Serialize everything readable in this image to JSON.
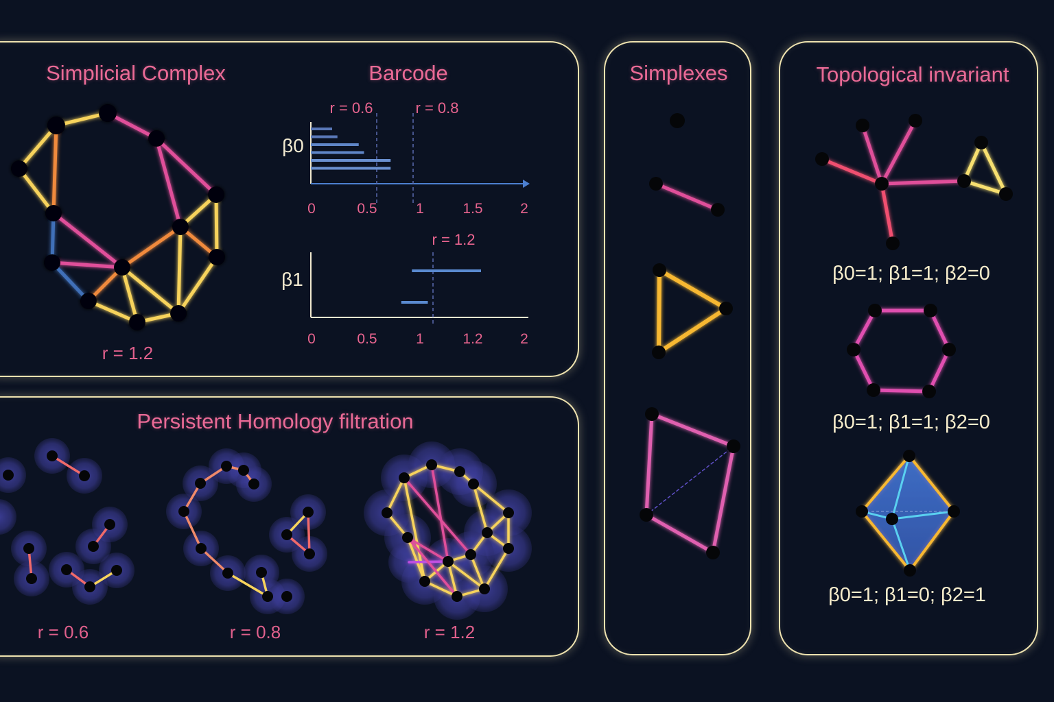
{
  "panels": {
    "complex": {
      "title": "Simplicial Complex",
      "radius_label": "r = 1.2"
    },
    "barcode": {
      "title": "Barcode",
      "top_marks": [
        "r = 0.6",
        "r = 0.8"
      ],
      "bottom_mark": "r = 1.2",
      "beta0": "β0",
      "beta1": "β1",
      "ticks_top": [
        "0",
        "0.5",
        "1",
        "1.5",
        "2"
      ],
      "ticks_bottom": [
        "0",
        "0.5",
        "1",
        "1.2",
        "2"
      ]
    },
    "filtration": {
      "title": "Persistent Homology filtration",
      "stages": [
        "r = 0.6",
        "r = 0.8",
        "r = 1.2"
      ]
    },
    "simplexes": {
      "title": "Simplexes"
    },
    "invariants": {
      "title": "Topological invariant",
      "items": [
        "β0=1; β1=1; β2=0",
        "β0=1; β1=1; β2=0",
        "β0=1; β1=0; β2=1"
      ]
    }
  },
  "chart_data": {
    "type": "bar",
    "series": [
      {
        "name": "β0",
        "intervals": [
          [
            0,
            0.2
          ],
          [
            0,
            0.25
          ],
          [
            0,
            0.45
          ],
          [
            0,
            0.5
          ],
          [
            0,
            0.75
          ],
          [
            0,
            0.75
          ]
        ],
        "xlim": [
          0,
          2
        ]
      },
      {
        "name": "β1",
        "intervals": [
          [
            0.95,
            1.6
          ],
          [
            0.85,
            1.1
          ]
        ],
        "xlim": [
          0,
          2
        ]
      }
    ]
  },
  "colors": {
    "background": "#0b1222",
    "panel_border": "#efe3b0",
    "title": "#ea6a96",
    "edge_yellow": "#f7d35c",
    "edge_orange": "#f08a3c",
    "edge_pink": "#e0509a",
    "edge_blue": "#3f6fb8",
    "halo": "#3d3d9a"
  }
}
